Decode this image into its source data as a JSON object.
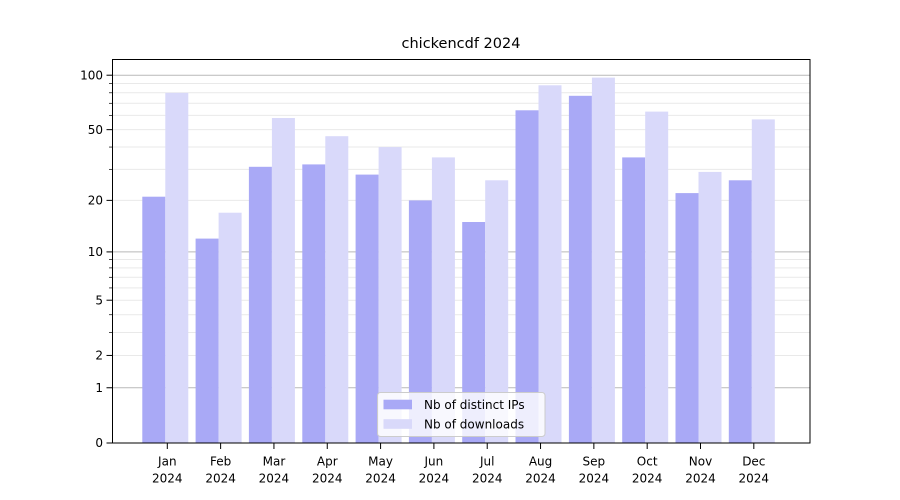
{
  "figure": {
    "background": "#ffffff"
  },
  "chart_data": {
    "type": "bar",
    "title": "chickencdf 2024",
    "categories": [
      "Jan",
      "Feb",
      "Mar",
      "Apr",
      "May",
      "Jun",
      "Jul",
      "Aug",
      "Sep",
      "Oct",
      "Nov",
      "Dec"
    ],
    "category_year": "2024",
    "series": [
      {
        "name": "Nb of distinct IPs",
        "color": "#a9a9f6",
        "values": [
          21,
          12,
          31,
          32,
          28,
          20,
          15,
          64,
          77,
          35,
          22,
          26
        ]
      },
      {
        "name": "Nb of downloads",
        "color": "#d9d9fa",
        "values": [
          80,
          17,
          58,
          46,
          40,
          35,
          26,
          88,
          97,
          63,
          29,
          57
        ]
      }
    ],
    "yscale": "log1p",
    "ylim": [
      0,
      122
    ],
    "ytick_labels": [
      "0",
      "1",
      "2",
      "5",
      "10",
      "20",
      "50",
      "100"
    ],
    "ytick_values": [
      0,
      1,
      2,
      5,
      10,
      20,
      50,
      100
    ],
    "y_major_gridlines": [
      1,
      10,
      100
    ],
    "y_minor_gridlines": [
      2,
      3,
      4,
      5,
      6,
      7,
      8,
      9,
      20,
      30,
      40,
      50,
      60,
      70,
      80,
      90
    ],
    "y_minor_tickmarks": [
      3,
      4,
      6,
      7,
      8,
      9,
      30,
      40,
      60,
      70,
      80,
      90
    ],
    "legend": {
      "position": "lower-center"
    },
    "grid": true,
    "axis_color": "#000000",
    "grid_major_color": "#b9b9b9",
    "grid_minor_color": "#e9e9e9",
    "legend_border_color": "#cccccc",
    "legend_background": "#ffffff"
  }
}
